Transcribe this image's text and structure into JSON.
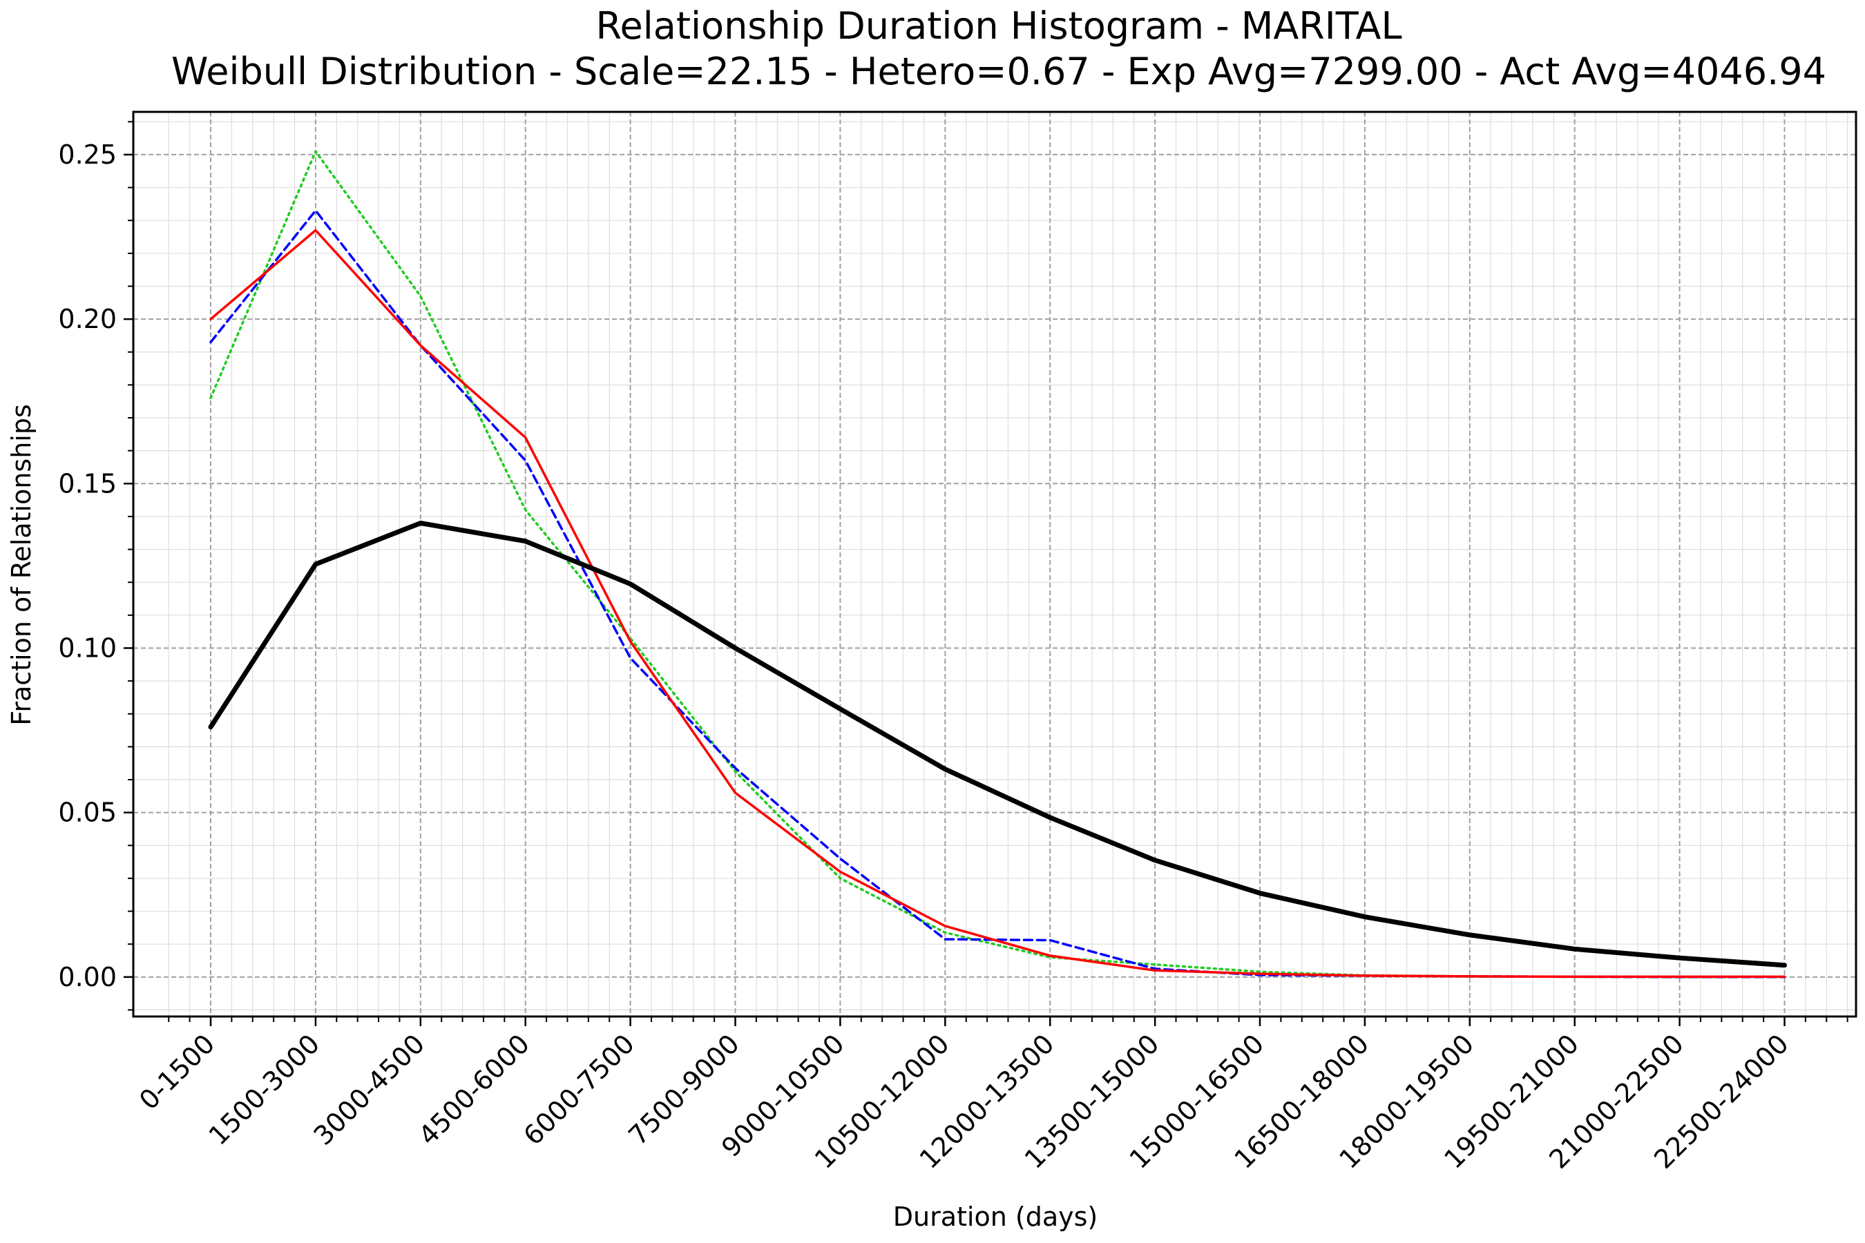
{
  "chart_data": {
    "type": "line",
    "title": "Relationship Duration Histogram - MARITAL",
    "subtitle": "Weibull Distribution - Scale=22.15 - Hetero=0.67 - Exp Avg=7299.00 - Act Avg=4046.94",
    "xlabel": "Duration (days)",
    "ylabel": "Fraction of Relationships",
    "ylim": [
      -0.012,
      0.263
    ],
    "yticks": [
      "0.00",
      "0.05",
      "0.10",
      "0.15",
      "0.20",
      "0.25"
    ],
    "grid": true,
    "legend": "none",
    "categories": [
      "0-1500",
      "1500-3000",
      "3000-4500",
      "4500-6000",
      "6000-7500",
      "7500-9000",
      "9000-10500",
      "10500-12000",
      "12000-13500",
      "13500-15000",
      "15000-16500",
      "16500-18000",
      "18000-19500",
      "19500-21000",
      "21000-22500",
      "22500-24000"
    ],
    "series": [
      {
        "color": "#000000",
        "style": "solid-thick",
        "values": [
          0.076,
          0.1255,
          0.138,
          0.1325,
          0.1195,
          0.1,
          0.0815,
          0.0632,
          0.0485,
          0.0355,
          0.0255,
          0.0183,
          0.0128,
          0.0085,
          0.0058,
          0.0036
        ]
      },
      {
        "color": "#ff0000",
        "style": "solid",
        "values": [
          0.2,
          0.227,
          0.192,
          0.164,
          0.102,
          0.056,
          0.032,
          0.0155,
          0.0065,
          0.002,
          0.001,
          0.0004,
          0.0002,
          0.0001,
          0.0001,
          0.0001
        ]
      },
      {
        "color": "#0000ff",
        "style": "dashed",
        "values": [
          0.193,
          0.233,
          0.192,
          0.157,
          0.097,
          0.0635,
          0.036,
          0.0115,
          0.0112,
          0.0025,
          0.0006,
          0.0004,
          0.0002,
          0.0001,
          0.0,
          0.0
        ]
      },
      {
        "color": "#22cc22",
        "style": "dotted",
        "values": [
          0.176,
          0.251,
          0.207,
          0.142,
          0.103,
          0.0625,
          0.03,
          0.0135,
          0.006,
          0.0038,
          0.0016,
          0.0005,
          0.0002,
          0.0001,
          0.0,
          0.0
        ]
      }
    ]
  }
}
